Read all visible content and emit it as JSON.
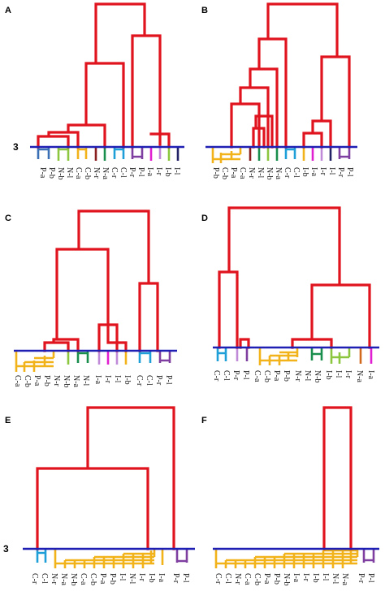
{
  "colors": {
    "tree": "#e0141e",
    "baseline": "#1f1fb4",
    "C": "#1e9fd7",
    "P": "#7f3fa0",
    "N": "#1a8f4d",
    "I": "#f2b31a",
    "L": "#c08ad8",
    "Q": "#e01fd0",
    "G": "#8cc63f",
    "S": "#3a6fb5",
    "O": "#d26a1e",
    "K": "#222266"
  },
  "cut_label": "3",
  "panels": [
    {
      "letter": "A",
      "leaves": [
        "P-a",
        "P-b",
        "N-b",
        "N-l",
        "C-a",
        "C-b",
        "N-r",
        "N-a",
        "C-r",
        "C-l",
        "P-r",
        "P-l",
        "I-a",
        "I-r",
        "I-b",
        "I-l"
      ]
    },
    {
      "letter": "B",
      "leaves": [
        "P-b",
        "C-b",
        "P-a",
        "C-a",
        "N-r",
        "N-l",
        "N-b",
        "N-a",
        "C-r",
        "C-l",
        "I-b",
        "I-a",
        "I-r",
        "I-l",
        "P-r",
        "P-l"
      ]
    },
    {
      "letter": "C",
      "leaves": [
        "C-a",
        "C-b",
        "P-a",
        "P-b",
        "N-r",
        "N-b",
        "N-a",
        "N-l",
        "I-a",
        "I-r",
        "I-l",
        "I-b",
        "C-r",
        "C-l",
        "P-r",
        "P-l"
      ]
    },
    {
      "letter": "D",
      "leaves": [
        "C-r",
        "C-l",
        "P-r",
        "P-l",
        "C-a",
        "C-b",
        "P-a",
        "P-b",
        "N-r",
        "N-l",
        "N-b",
        "I-b",
        "I-l",
        "I-r",
        "N-a",
        "I-a"
      ]
    },
    {
      "letter": "E",
      "leaves": [
        "C-r",
        "C-l",
        "N-r",
        "N-a",
        "N-b",
        "C-a",
        "C-b",
        "P-a",
        "P-b",
        "I-l",
        "N-l",
        "I-r",
        "I-b",
        "I-a",
        "P-r",
        "P-l"
      ]
    },
    {
      "letter": "F",
      "leaves": [
        "C-r",
        "C-l",
        "N-r",
        "C-a",
        "C-b",
        "P-a",
        "P-b",
        "N-b",
        "I-a",
        "I-r",
        "I-b",
        "I-l",
        "N-l",
        "N-a",
        "P-r",
        "P-l"
      ]
    }
  ]
}
